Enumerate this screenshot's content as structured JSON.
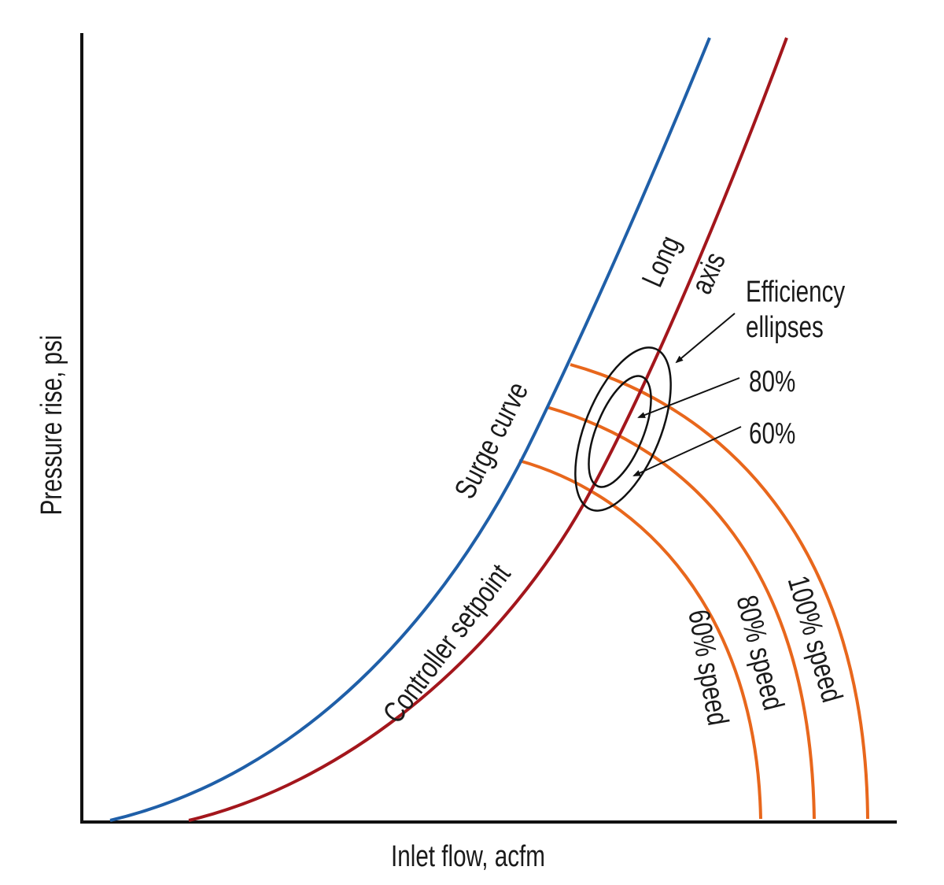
{
  "axes": {
    "x_label": "Inlet flow, acfm",
    "y_label": "Pressure rise, psi"
  },
  "curves": {
    "surge": {
      "label": "Surge curve",
      "color": "#1f5fa8"
    },
    "controller": {
      "label": "Controller setpoint",
      "color": "#a3161c"
    },
    "speed_color": "#e8671c",
    "speeds": [
      {
        "label": "60% speed"
      },
      {
        "label": "80% speed"
      },
      {
        "label": "100% speed"
      }
    ]
  },
  "annotations": {
    "long_axis_1": "Long",
    "long_axis_2": "axis",
    "efficiency_1": "Efficiency",
    "efficiency_2": "ellipses",
    "pct_80": "80%",
    "pct_60": "60%"
  }
}
